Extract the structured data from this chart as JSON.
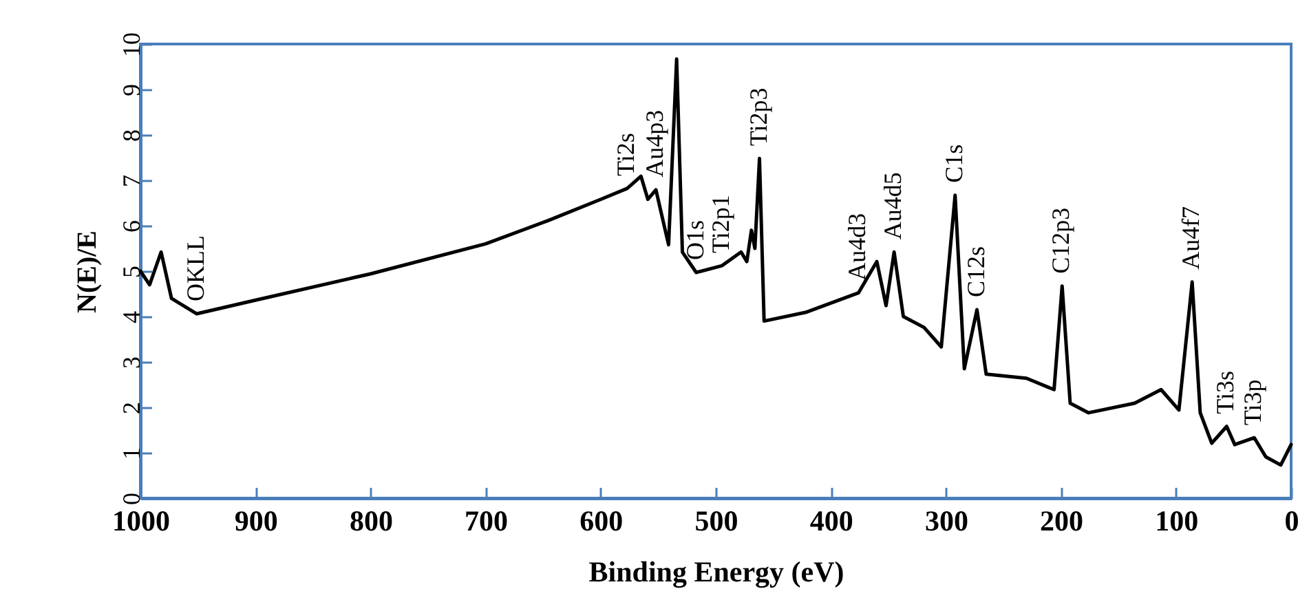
{
  "chart_data": {
    "type": "line",
    "xlabel": "Binding Energy (eV)",
    "ylabel": "N(E)/E",
    "x": [
      1000,
      992,
      982,
      973,
      951,
      900,
      800,
      700,
      645,
      600,
      577,
      565,
      559,
      552,
      541,
      534,
      529,
      517,
      494.5,
      478,
      473,
      469,
      466,
      462,
      458,
      422,
      376,
      360,
      352,
      345,
      337,
      319,
      304,
      292,
      284,
      273,
      265,
      230,
      206,
      199,
      192,
      176,
      136,
      113,
      97.5,
      86,
      79,
      69,
      56,
      49,
      32,
      22,
      9,
      0
    ],
    "series": [
      {
        "color": "#000000",
        "values": [
          5.0,
          4.7,
          5.42,
          4.4,
          4.06,
          4.36,
          4.94,
          5.6,
          6.12,
          6.58,
          6.82,
          7.09,
          6.58,
          6.79,
          5.58,
          9.67,
          5.42,
          4.97,
          5.12,
          5.42,
          5.21,
          5.9,
          5.5,
          7.48,
          3.9,
          4.09,
          4.52,
          5.21,
          4.24,
          5.42,
          4.0,
          3.76,
          3.33,
          6.67,
          2.85,
          4.15,
          2.73,
          2.64,
          2.39,
          4.67,
          2.09,
          1.88,
          2.09,
          2.39,
          1.94,
          4.76,
          1.88,
          1.21,
          1.58,
          1.18,
          1.33,
          0.91,
          0.73,
          1.18
        ]
      }
    ],
    "xlim": [
      1000,
      0
    ],
    "ylim": [
      0,
      10
    ],
    "xticks": [
      1000,
      900,
      800,
      700,
      600,
      500,
      400,
      300,
      200,
      100,
      0
    ],
    "yticks": [
      0,
      1,
      2,
      3,
      4,
      5,
      6,
      7,
      8,
      9,
      10
    ],
    "line_style": "solid",
    "annotations": [
      {
        "text": "OKLL",
        "x": 951,
        "y": 4.06
      },
      {
        "text": "Ti2s",
        "x": 577,
        "y": 6.82
      },
      {
        "text": "Au4p3",
        "x": 552,
        "y": 6.79
      },
      {
        "text": "O1s",
        "x": 517,
        "y": 4.97
      },
      {
        "text": "Ti2p1",
        "x": 494.5,
        "y": 5.12
      },
      {
        "text": "Ti2p3",
        "x": 462,
        "y": 7.48
      },
      {
        "text": "Au4d3",
        "x": 376,
        "y": 4.52
      },
      {
        "text": "Au4d5",
        "x": 345,
        "y": 5.42
      },
      {
        "text": "C1s",
        "x": 292,
        "y": 6.67
      },
      {
        "text": "C12s",
        "x": 273,
        "y": 4.15
      },
      {
        "text": "C12p3",
        "x": 199,
        "y": 4.67
      },
      {
        "text": "Au4f7",
        "x": 86,
        "y": 4.76
      },
      {
        "text": "Ti3s",
        "x": 56,
        "y": 1.58
      },
      {
        "text": "Ti3p",
        "x": 32,
        "y": 1.33
      }
    ]
  }
}
